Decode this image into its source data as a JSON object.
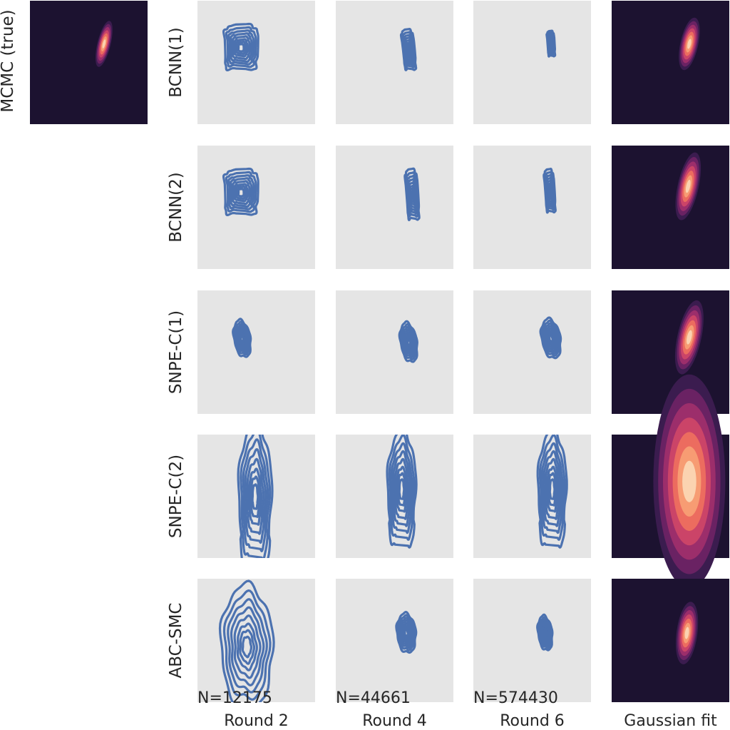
{
  "chart_data": {
    "type": "contour",
    "reference": {
      "label": "MCMC (true)",
      "density": {
        "cx": 0.63,
        "cy": 0.35,
        "sx": 0.022,
        "sy": 0.075,
        "rho": 0.55
      }
    },
    "rows": [
      {
        "label": "BCNN(1)",
        "rounds": [
          {
            "cx": 0.37,
            "cy": 0.38,
            "sx": 0.14,
            "sy": 0.18,
            "rho": 0.0,
            "shape": "blocky"
          },
          {
            "cx": 0.62,
            "cy": 0.4,
            "sx": 0.05,
            "sy": 0.16,
            "rho": 0.3,
            "shape": "blocky"
          },
          {
            "cx": 0.66,
            "cy": 0.35,
            "sx": 0.03,
            "sy": 0.1,
            "rho": 0.2,
            "shape": "blocky"
          }
        ],
        "gaussian_fit": {
          "cx": 0.66,
          "cy": 0.35,
          "sx": 0.03,
          "sy": 0.085,
          "rho": 0.5
        }
      },
      {
        "label": "BCNN(2)",
        "rounds": [
          {
            "cx": 0.37,
            "cy": 0.38,
            "sx": 0.14,
            "sy": 0.18,
            "rho": 0.0,
            "shape": "blocky"
          },
          {
            "cx": 0.65,
            "cy": 0.4,
            "sx": 0.05,
            "sy": 0.2,
            "rho": 0.2,
            "shape": "blocky"
          },
          {
            "cx": 0.65,
            "cy": 0.37,
            "sx": 0.04,
            "sy": 0.17,
            "rho": 0.2,
            "shape": "blocky"
          }
        ],
        "gaussian_fit": {
          "cx": 0.65,
          "cy": 0.33,
          "sx": 0.035,
          "sy": 0.11,
          "rho": 0.5
        }
      },
      {
        "label": "SNPE-C(1)",
        "rounds": [
          {
            "cx": 0.38,
            "cy": 0.39,
            "sx": 0.07,
            "sy": 0.15,
            "rho": 0.4,
            "shape": "smooth"
          },
          {
            "cx": 0.62,
            "cy": 0.42,
            "sx": 0.07,
            "sy": 0.16,
            "rho": 0.4,
            "shape": "smooth"
          },
          {
            "cx": 0.66,
            "cy": 0.39,
            "sx": 0.08,
            "sy": 0.16,
            "rho": 0.4,
            "shape": "smooth"
          }
        ],
        "gaussian_fit": {
          "cx": 0.66,
          "cy": 0.38,
          "sx": 0.04,
          "sy": 0.12,
          "rho": 0.5
        }
      },
      {
        "label": "SNPE-C(2)",
        "rounds": [
          {
            "cx": 0.49,
            "cy": 0.5,
            "sx": 0.14,
            "sy": 0.6,
            "rho": 0.0,
            "shape": "bimodal"
          },
          {
            "cx": 0.56,
            "cy": 0.44,
            "sx": 0.12,
            "sy": 0.48,
            "rho": 0.0,
            "shape": "bimodal"
          },
          {
            "cx": 0.67,
            "cy": 0.44,
            "sx": 0.12,
            "sy": 0.48,
            "rho": 0.0,
            "shape": "bimodal"
          }
        ],
        "gaussian_fit": {
          "cx": 0.66,
          "cy": 0.38,
          "sx": 0.12,
          "sy": 0.34,
          "rho": 0.0
        }
      },
      {
        "label": "ABC-SMC",
        "rounds": [
          {
            "cx": 0.42,
            "cy": 0.55,
            "sx": 0.22,
            "sy": 0.5,
            "rho": 0.05,
            "shape": "smooth"
          },
          {
            "cx": 0.6,
            "cy": 0.44,
            "sx": 0.08,
            "sy": 0.16,
            "rho": 0.2,
            "shape": "smooth"
          },
          {
            "cx": 0.61,
            "cy": 0.44,
            "sx": 0.06,
            "sy": 0.14,
            "rho": 0.3,
            "shape": "smooth"
          }
        ],
        "gaussian_fit": {
          "cx": 0.64,
          "cy": 0.44,
          "sx": 0.035,
          "sy": 0.1,
          "rho": 0.3
        }
      }
    ],
    "columns": [
      "Round 2",
      "Round 4",
      "Round 6",
      "Gaussian fit"
    ],
    "simulation_counts": [
      "N=12175",
      "N=44661",
      "N=574430"
    ],
    "colors": {
      "contour": "#4c72b0",
      "panel_background": "#e5e5e5",
      "heatmap_background": "#1c1230",
      "heatmap_ramp": [
        "#1c1230",
        "#3b1c4f",
        "#6a2263",
        "#9c2e6b",
        "#cb4468",
        "#ec6c5f",
        "#f79c73",
        "#fbd3b0"
      ]
    }
  }
}
